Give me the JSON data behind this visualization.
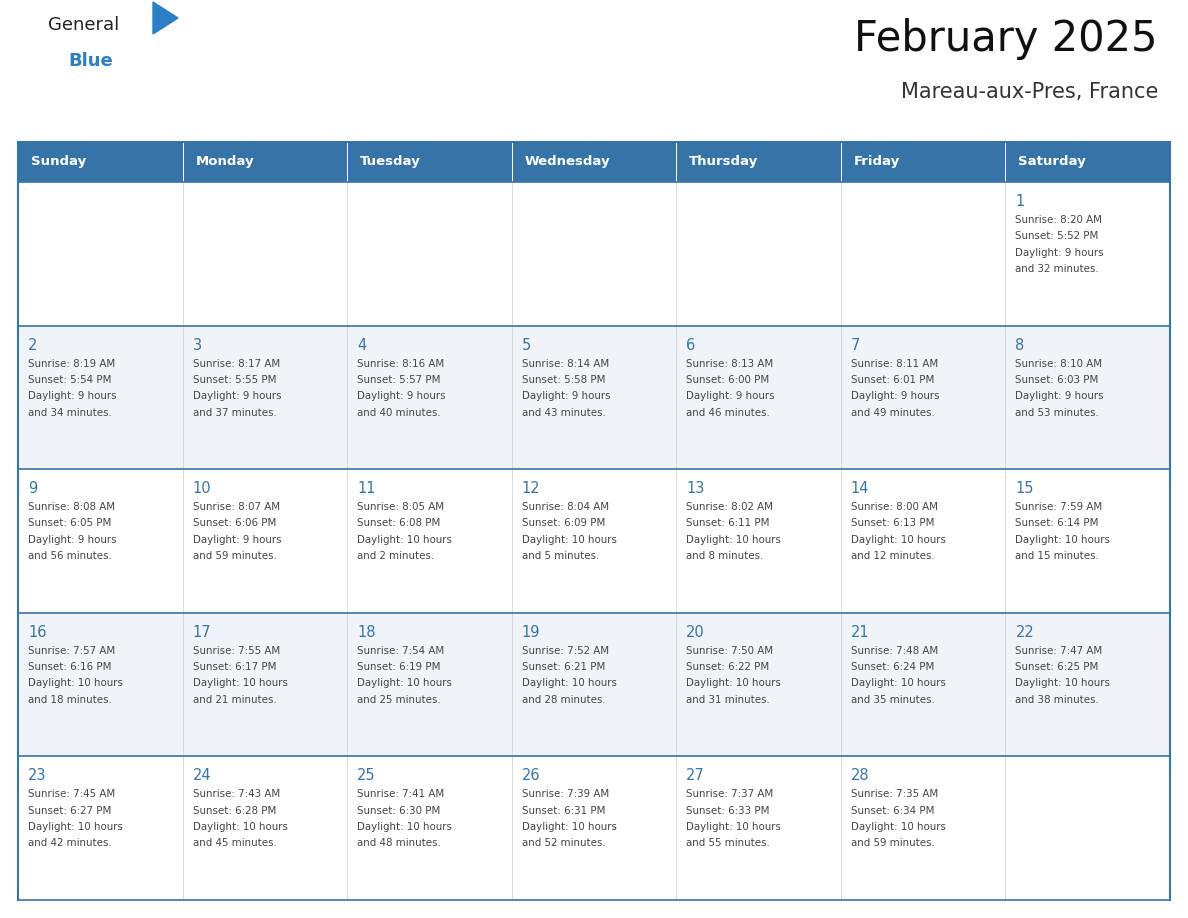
{
  "title": "February 2025",
  "subtitle": "Mareau-aux-Pres, France",
  "header_color": "#3674a8",
  "header_text_color": "#ffffff",
  "cell_bg_even": "#ffffff",
  "cell_bg_odd": "#f0f4f8",
  "border_color": "#3674a8",
  "cell_border_color": "#cccccc",
  "days_of_week": [
    "Sunday",
    "Monday",
    "Tuesday",
    "Wednesday",
    "Thursday",
    "Friday",
    "Saturday"
  ],
  "number_color": "#3674a8",
  "info_color": "#444444",
  "logo_general_color": "#222222",
  "logo_blue_color": "#2b7fc4",
  "calendar": [
    [
      null,
      null,
      null,
      null,
      null,
      null,
      {
        "day": 1,
        "sunrise": "8:20 AM",
        "sunset": "5:52 PM",
        "daylight_hours": 9,
        "daylight_minutes": 32
      }
    ],
    [
      {
        "day": 2,
        "sunrise": "8:19 AM",
        "sunset": "5:54 PM",
        "daylight_hours": 9,
        "daylight_minutes": 34
      },
      {
        "day": 3,
        "sunrise": "8:17 AM",
        "sunset": "5:55 PM",
        "daylight_hours": 9,
        "daylight_minutes": 37
      },
      {
        "day": 4,
        "sunrise": "8:16 AM",
        "sunset": "5:57 PM",
        "daylight_hours": 9,
        "daylight_minutes": 40
      },
      {
        "day": 5,
        "sunrise": "8:14 AM",
        "sunset": "5:58 PM",
        "daylight_hours": 9,
        "daylight_minutes": 43
      },
      {
        "day": 6,
        "sunrise": "8:13 AM",
        "sunset": "6:00 PM",
        "daylight_hours": 9,
        "daylight_minutes": 46
      },
      {
        "day": 7,
        "sunrise": "8:11 AM",
        "sunset": "6:01 PM",
        "daylight_hours": 9,
        "daylight_minutes": 49
      },
      {
        "day": 8,
        "sunrise": "8:10 AM",
        "sunset": "6:03 PM",
        "daylight_hours": 9,
        "daylight_minutes": 53
      }
    ],
    [
      {
        "day": 9,
        "sunrise": "8:08 AM",
        "sunset": "6:05 PM",
        "daylight_hours": 9,
        "daylight_minutes": 56
      },
      {
        "day": 10,
        "sunrise": "8:07 AM",
        "sunset": "6:06 PM",
        "daylight_hours": 9,
        "daylight_minutes": 59
      },
      {
        "day": 11,
        "sunrise": "8:05 AM",
        "sunset": "6:08 PM",
        "daylight_hours": 10,
        "daylight_minutes": 2
      },
      {
        "day": 12,
        "sunrise": "8:04 AM",
        "sunset": "6:09 PM",
        "daylight_hours": 10,
        "daylight_minutes": 5
      },
      {
        "day": 13,
        "sunrise": "8:02 AM",
        "sunset": "6:11 PM",
        "daylight_hours": 10,
        "daylight_minutes": 8
      },
      {
        "day": 14,
        "sunrise": "8:00 AM",
        "sunset": "6:13 PM",
        "daylight_hours": 10,
        "daylight_minutes": 12
      },
      {
        "day": 15,
        "sunrise": "7:59 AM",
        "sunset": "6:14 PM",
        "daylight_hours": 10,
        "daylight_minutes": 15
      }
    ],
    [
      {
        "day": 16,
        "sunrise": "7:57 AM",
        "sunset": "6:16 PM",
        "daylight_hours": 10,
        "daylight_minutes": 18
      },
      {
        "day": 17,
        "sunrise": "7:55 AM",
        "sunset": "6:17 PM",
        "daylight_hours": 10,
        "daylight_minutes": 21
      },
      {
        "day": 18,
        "sunrise": "7:54 AM",
        "sunset": "6:19 PM",
        "daylight_hours": 10,
        "daylight_minutes": 25
      },
      {
        "day": 19,
        "sunrise": "7:52 AM",
        "sunset": "6:21 PM",
        "daylight_hours": 10,
        "daylight_minutes": 28
      },
      {
        "day": 20,
        "sunrise": "7:50 AM",
        "sunset": "6:22 PM",
        "daylight_hours": 10,
        "daylight_minutes": 31
      },
      {
        "day": 21,
        "sunrise": "7:48 AM",
        "sunset": "6:24 PM",
        "daylight_hours": 10,
        "daylight_minutes": 35
      },
      {
        "day": 22,
        "sunrise": "7:47 AM",
        "sunset": "6:25 PM",
        "daylight_hours": 10,
        "daylight_minutes": 38
      }
    ],
    [
      {
        "day": 23,
        "sunrise": "7:45 AM",
        "sunset": "6:27 PM",
        "daylight_hours": 10,
        "daylight_minutes": 42
      },
      {
        "day": 24,
        "sunrise": "7:43 AM",
        "sunset": "6:28 PM",
        "daylight_hours": 10,
        "daylight_minutes": 45
      },
      {
        "day": 25,
        "sunrise": "7:41 AM",
        "sunset": "6:30 PM",
        "daylight_hours": 10,
        "daylight_minutes": 48
      },
      {
        "day": 26,
        "sunrise": "7:39 AM",
        "sunset": "6:31 PM",
        "daylight_hours": 10,
        "daylight_minutes": 52
      },
      {
        "day": 27,
        "sunrise": "7:37 AM",
        "sunset": "6:33 PM",
        "daylight_hours": 10,
        "daylight_minutes": 55
      },
      {
        "day": 28,
        "sunrise": "7:35 AM",
        "sunset": "6:34 PM",
        "daylight_hours": 10,
        "daylight_minutes": 59
      },
      null
    ]
  ]
}
